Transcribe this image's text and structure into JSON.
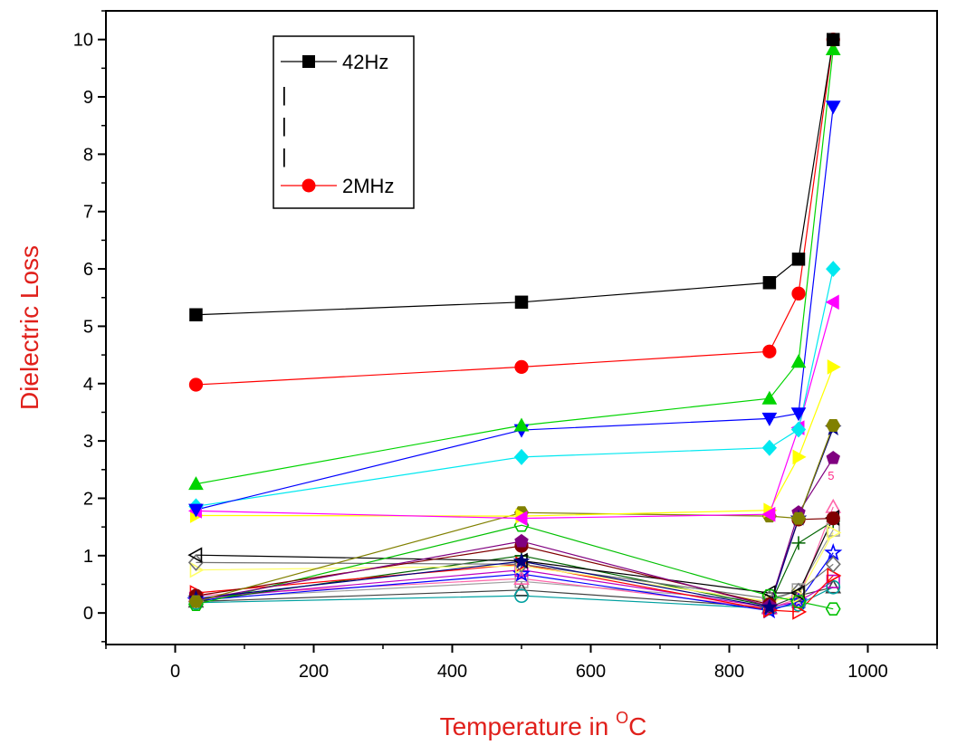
{
  "chart_data": {
    "type": "line",
    "title": "",
    "xlabel": "Temperature in ",
    "xlabel_sup": "O",
    "xlabel_end": "C",
    "ylabel": "Dielectric Loss",
    "xlim": [
      -100,
      1100
    ],
    "ylim": [
      -0.55,
      10.5
    ],
    "x_ticks": [
      0,
      200,
      400,
      600,
      800,
      1000
    ],
    "y_ticks": [
      0,
      1,
      2,
      3,
      4,
      5,
      6,
      7,
      8,
      9,
      10
    ],
    "x_tick_labels": [
      "0",
      "200",
      "400",
      "600",
      "800",
      "1000"
    ],
    "y_tick_labels": [
      "0",
      "1",
      "2",
      "3",
      "4",
      "5",
      "6",
      "7",
      "8",
      "9",
      "10"
    ],
    "grid": false,
    "legend": {
      "position": "top-left",
      "first": "42Hz",
      "dots": [
        "|",
        "|",
        "|"
      ],
      "last": "2MHz"
    },
    "annotations": [
      {
        "text": "5",
        "x": 950,
        "y": 2.1
      }
    ],
    "x": [
      30,
      500,
      858,
      900,
      950
    ],
    "series": [
      {
        "name": "42Hz",
        "color": "#000000",
        "marker": "square",
        "filled": true,
        "values": [
          5.2,
          5.42,
          5.76,
          6.17,
          10.0
        ]
      },
      {
        "color": "#ff0000",
        "marker": "circle",
        "filled": true,
        "values": [
          3.98,
          4.29,
          4.56,
          5.57,
          10.0
        ]
      },
      {
        "color": "#00d400",
        "marker": "triangle-up",
        "filled": true,
        "values": [
          2.25,
          3.27,
          3.74,
          4.38,
          9.83
        ]
      },
      {
        "color": "#0000ff",
        "marker": "triangle-down",
        "filled": true,
        "values": [
          1.8,
          3.19,
          3.39,
          3.48,
          8.83
        ]
      },
      {
        "color": "#00e8f0",
        "marker": "diamond",
        "filled": true,
        "values": [
          1.86,
          2.72,
          2.88,
          3.2,
          6.0
        ]
      },
      {
        "color": "#ff00ff",
        "marker": "triangle-left",
        "filled": true,
        "values": [
          1.78,
          1.65,
          1.72,
          3.23,
          5.42
        ]
      },
      {
        "color": "#ffff00",
        "marker": "triangle-right",
        "filled": true,
        "values": [
          1.7,
          1.69,
          1.79,
          2.72,
          4.29
        ]
      },
      {
        "color": "#808000",
        "marker": "hexagon",
        "filled": true,
        "values": [
          0.2,
          1.75,
          1.69,
          1.65,
          3.27
        ]
      },
      {
        "color": "#000080",
        "marker": "star",
        "filled": true,
        "values": [
          0.25,
          0.9,
          0.1,
          1.65,
          3.22
        ]
      },
      {
        "color": "#800080",
        "marker": "pentagon",
        "filled": true,
        "values": [
          0.22,
          1.25,
          0.12,
          1.75,
          2.7
        ]
      },
      {
        "color": "#800000",
        "marker": "circle",
        "filled": true,
        "values": [
          0.3,
          1.17,
          0.15,
          1.63,
          1.65
        ]
      },
      {
        "color": "#00c000",
        "marker": "hexagon",
        "filled": false,
        "values": [
          0.15,
          1.53,
          0.3,
          0.2,
          0.07
        ]
      },
      {
        "color": "#000000",
        "marker": "triangle-left",
        "filled": false,
        "values": [
          1.01,
          0.91,
          0.35,
          0.35,
          1.66
        ]
      },
      {
        "color": "#707070",
        "marker": "diamond",
        "filled": false,
        "values": [
          0.88,
          0.85,
          0.25,
          0.38,
          0.85
        ]
      },
      {
        "color": "#ffff66",
        "marker": "triangle-right",
        "filled": false,
        "values": [
          0.75,
          0.82,
          0.2,
          0.3,
          1.4
        ]
      },
      {
        "color": "#ff0000",
        "marker": "triangle-right",
        "filled": false,
        "values": [
          0.35,
          0.85,
          0.05,
          0.02,
          0.65
        ]
      },
      {
        "color": "#0000ff",
        "marker": "star",
        "filled": false,
        "values": [
          0.22,
          0.68,
          0.04,
          0.2,
          1.05
        ]
      },
      {
        "color": "#006400",
        "marker": "plus",
        "filled": false,
        "values": [
          0.2,
          1.0,
          0.12,
          1.22,
          1.6
        ]
      },
      {
        "color": "#00a0a0",
        "marker": "circle",
        "filled": false,
        "values": [
          0.18,
          0.3,
          0.08,
          0.15,
          0.45
        ]
      },
      {
        "color": "#c000c0",
        "marker": "square",
        "filled": false,
        "values": [
          0.25,
          0.75,
          0.1,
          0.2,
          0.55
        ]
      },
      {
        "color": "#ff66aa",
        "marker": "triangle-up",
        "filled": false,
        "values": [
          0.3,
          0.6,
          0.08,
          0.25,
          1.85
        ]
      },
      {
        "color": "#404040",
        "marker": "triangle-up",
        "filled": false,
        "values": [
          0.2,
          0.4,
          0.1,
          0.3,
          0.45
        ]
      },
      {
        "color": "#a0a0a0",
        "marker": "square",
        "filled": false,
        "values": [
          0.25,
          0.55,
          0.2,
          0.4,
          1.45
        ]
      }
    ]
  }
}
